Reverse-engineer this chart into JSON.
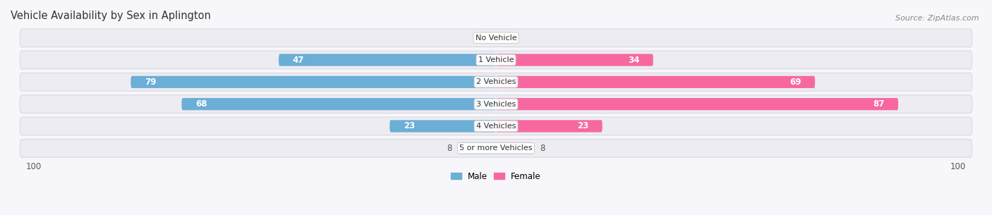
{
  "title": "Vehicle Availability by Sex in Aplington",
  "source": "Source: ZipAtlas.com",
  "categories": [
    "No Vehicle",
    "1 Vehicle",
    "2 Vehicles",
    "3 Vehicles",
    "4 Vehicles",
    "5 or more Vehicles"
  ],
  "male_values": [
    0,
    47,
    79,
    68,
    23,
    8
  ],
  "female_values": [
    0,
    34,
    69,
    87,
    23,
    8
  ],
  "male_color": "#6baed6",
  "female_color": "#f768a1",
  "male_color_light": "#b3d4ec",
  "female_color_light": "#fbb4c9",
  "row_bg_color": "#ececf2",
  "row_bg_edge": "#d8d8e0",
  "xlim_left": -105,
  "xlim_right": 105,
  "legend_male": "Male",
  "legend_female": "Female",
  "title_fontsize": 10.5,
  "source_fontsize": 8,
  "label_fontsize": 8.5,
  "category_fontsize": 8,
  "bar_height": 0.55,
  "background_color": "#f7f7fb",
  "large_threshold": 20
}
